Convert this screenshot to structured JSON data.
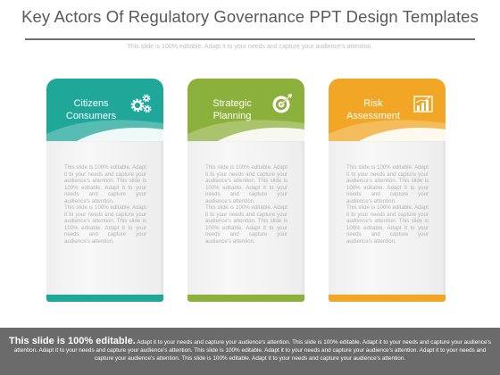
{
  "slide": {
    "title": "Key Actors Of Regulatory Governance PPT Design Templates",
    "subtitle": "This slide is 100% editable. Adapt it to your needs and capture your audience's attention."
  },
  "cards": [
    {
      "label": "Citizens\nConsumers",
      "icon": "gears-icon",
      "color": "#1fa79a",
      "body": "This slide is 100% editable. Adapt it to your needs and capture your audience's attention. This slide is 100% editable. Adapt it to your needs and capture your audience's attention.\nThis slide is 100% editable. Adapt it to your needs and capture your audience's attention. This slide is 100% editable. Adapt it to your needs and capture your audience's attention."
    },
    {
      "label": "Strategic\nPlanning",
      "icon": "target-icon",
      "color": "#8cb03c",
      "body": "This slide is 100% editable. Adapt it to your needs and capture your audience's attention. This slide is 100% editable. Adapt it to your needs and capture your audience's attention.\nThis slide is 100% editable. Adapt it to your needs and capture your audience's attention. This slide is 100% editable. Adapt it to your needs and capture your audience's attention."
    },
    {
      "label": "Risk\nAssessment",
      "icon": "bar-chart-icon",
      "color": "#f2a626",
      "body": "This slide is 100% editable. Adapt it to your needs and capture your audience's attention. This slide is 100% editable. Adapt it to your needs and capture your audience's attention.\nThis slide is 100% editable. Adapt it to your needs and capture your audience's attention. This slide is 100% editable. Adapt it to your needs and capture your audience's attention."
    }
  ],
  "footer": {
    "lead": "This slide is 100% editable.",
    "text": " Adapt it to your needs and capture your audience's attention. This slide is 100% editable. Adapt it to your needs and capture your audience's attention. Adapt it to your needs and capture your audience's attention. This slide is 100% editable. Adapt it to your needs and capture your audience's attention. Adapt it to your needs and capture your audience's attention. This slide is 100% editable. Adapt it to your needs and capture your audience's attention."
  }
}
